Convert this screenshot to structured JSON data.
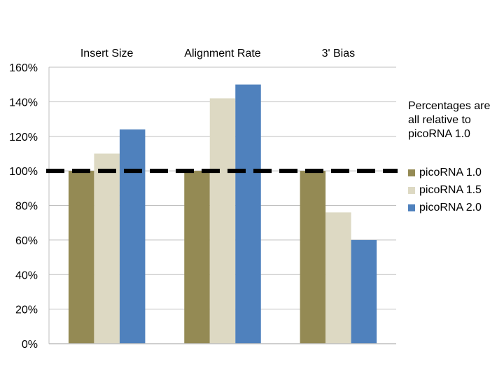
{
  "chart_data": {
    "type": "bar",
    "categories": [
      "Insert Size",
      "Alignment Rate",
      "3' Bias"
    ],
    "series": [
      {
        "name": "picoRNA 1.0",
        "color": "#948a54",
        "values": [
          100,
          100,
          100
        ]
      },
      {
        "name": "picoRNA 1.5",
        "color": "#ddd9c3",
        "values": [
          110,
          142,
          76
        ]
      },
      {
        "name": "picoRNA 2.0",
        "color": "#4f81bd",
        "values": [
          124,
          150,
          60
        ]
      }
    ],
    "ylim": [
      0,
      160
    ],
    "yticks": [
      "0%",
      "20%",
      "40%",
      "60%",
      "80%",
      "100%",
      "120%",
      "140%",
      "160%"
    ],
    "grid": true,
    "reference_line": {
      "value": 100,
      "style": "dashed",
      "color": "#000000"
    },
    "category_labels_position": "top",
    "legend_position": "right",
    "annotation": "Percentages are all relative to picoRNA 1.0"
  }
}
